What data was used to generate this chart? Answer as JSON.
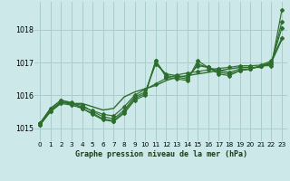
{
  "title": "Graphe pression niveau de la mer (hPa)",
  "bg_color": "#cce8e8",
  "grid_color": "#aacccc",
  "line_color": "#2d6e2d",
  "xlim": [
    -0.5,
    23.5
  ],
  "ylim": [
    1014.6,
    1018.85
  ],
  "yticks": [
    1015,
    1016,
    1017,
    1018
  ],
  "xticks": [
    0,
    1,
    2,
    3,
    4,
    5,
    6,
    7,
    8,
    9,
    10,
    11,
    12,
    13,
    14,
    15,
    16,
    17,
    18,
    19,
    20,
    21,
    22,
    23
  ],
  "series": [
    [
      1015.1,
      1015.55,
      1015.8,
      1015.75,
      1015.75,
      1015.65,
      1015.55,
      1015.6,
      1015.95,
      1016.1,
      1016.2,
      1016.3,
      1016.45,
      1016.55,
      1016.6,
      1016.65,
      1016.7,
      1016.75,
      1016.8,
      1016.85,
      1016.85,
      1016.85,
      1017.0,
      1017.7
    ],
    [
      1015.15,
      1015.6,
      1015.85,
      1015.75,
      1015.7,
      1015.5,
      1015.35,
      1015.28,
      1015.55,
      1015.95,
      1016.1,
      1016.95,
      1016.65,
      1016.6,
      1016.55,
      1016.9,
      1016.85,
      1016.75,
      1016.7,
      1016.8,
      1016.8,
      1016.9,
      1017.0,
      1018.05
    ],
    [
      1015.15,
      1015.6,
      1015.85,
      1015.78,
      1015.6,
      1015.45,
      1015.28,
      1015.22,
      1015.5,
      1015.9,
      1016.05,
      1017.05,
      1016.6,
      1016.55,
      1016.5,
      1016.95,
      1016.85,
      1016.7,
      1016.65,
      1016.75,
      1016.8,
      1016.9,
      1016.95,
      1018.25
    ],
    [
      1015.1,
      1015.5,
      1015.75,
      1015.7,
      1015.6,
      1015.42,
      1015.25,
      1015.2,
      1015.45,
      1015.85,
      1016.0,
      1017.05,
      1016.55,
      1016.5,
      1016.45,
      1017.05,
      1016.85,
      1016.65,
      1016.6,
      1016.75,
      1016.8,
      1016.9,
      1016.9,
      1018.6
    ],
    [
      1015.1,
      1015.52,
      1015.78,
      1015.73,
      1015.65,
      1015.53,
      1015.42,
      1015.37,
      1015.65,
      1016.0,
      1016.18,
      1016.35,
      1016.52,
      1016.62,
      1016.68,
      1016.72,
      1016.78,
      1016.82,
      1016.85,
      1016.9,
      1016.9,
      1016.92,
      1017.05,
      1017.75
    ]
  ]
}
